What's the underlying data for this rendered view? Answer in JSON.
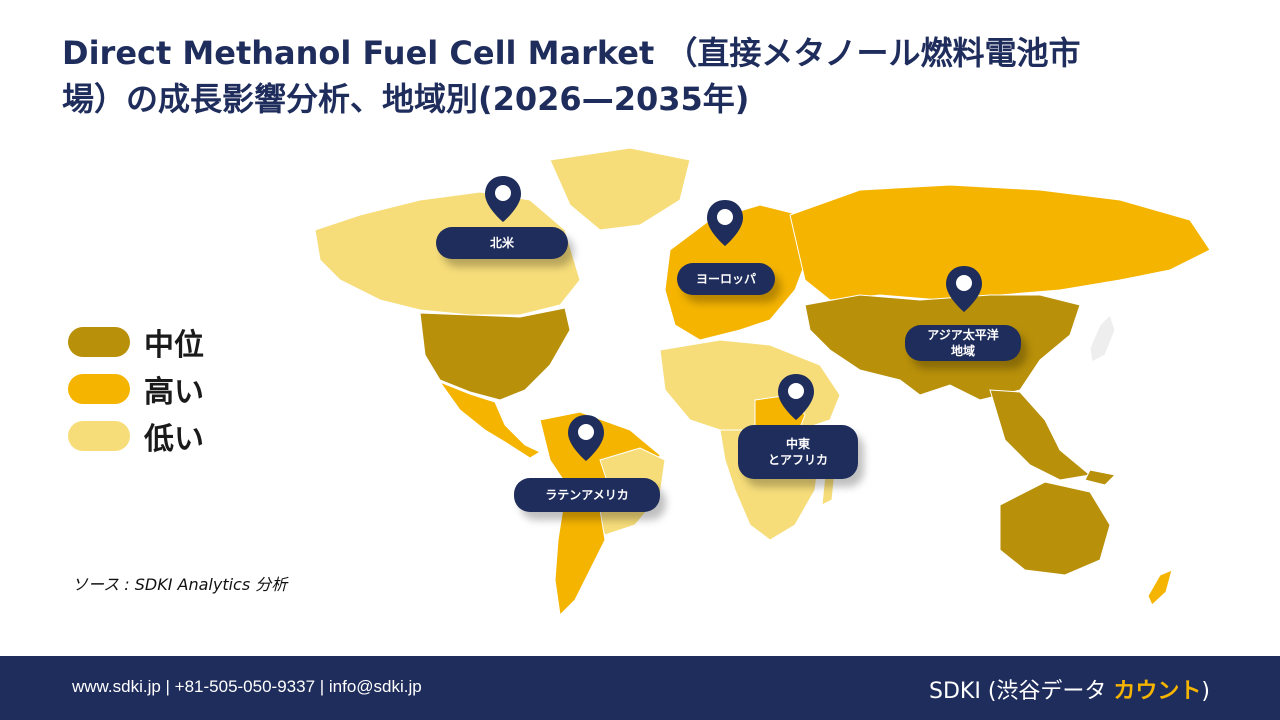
{
  "title": {
    "line1": "Direct Methanol Fuel Cell Market （直接メタノール燃料電池市",
    "line2": "場）の成長影響分析、地域別(2026—2035年)"
  },
  "legend": [
    {
      "label": "中位",
      "color": "#b8900a"
    },
    {
      "label": "高い",
      "color": "#f5b400"
    },
    {
      "label": "低い",
      "color": "#f6dd7a"
    }
  ],
  "regions": {
    "north_america": "北米",
    "europe": "ヨーロッパ",
    "asia_pacific_line1": "アジア太平洋",
    "asia_pacific_line2": "地域",
    "middle_east_line1": "中東",
    "middle_east_line2": "とアフリカ",
    "latin_america": "ラテンアメリカ"
  },
  "source": "ソース : SDKI Analytics 分析",
  "footer": {
    "contact": "www.sdki.jp | +81-505-050-9337 | info@sdki.jp",
    "brand_prefix": "SDKI (渋谷データ ",
    "brand_accent": "カウント",
    "brand_suffix": ")"
  },
  "colors": {
    "navy": "#1f2d5c",
    "medium": "#b8900a",
    "high": "#f5b400",
    "low": "#f6dd7a"
  }
}
